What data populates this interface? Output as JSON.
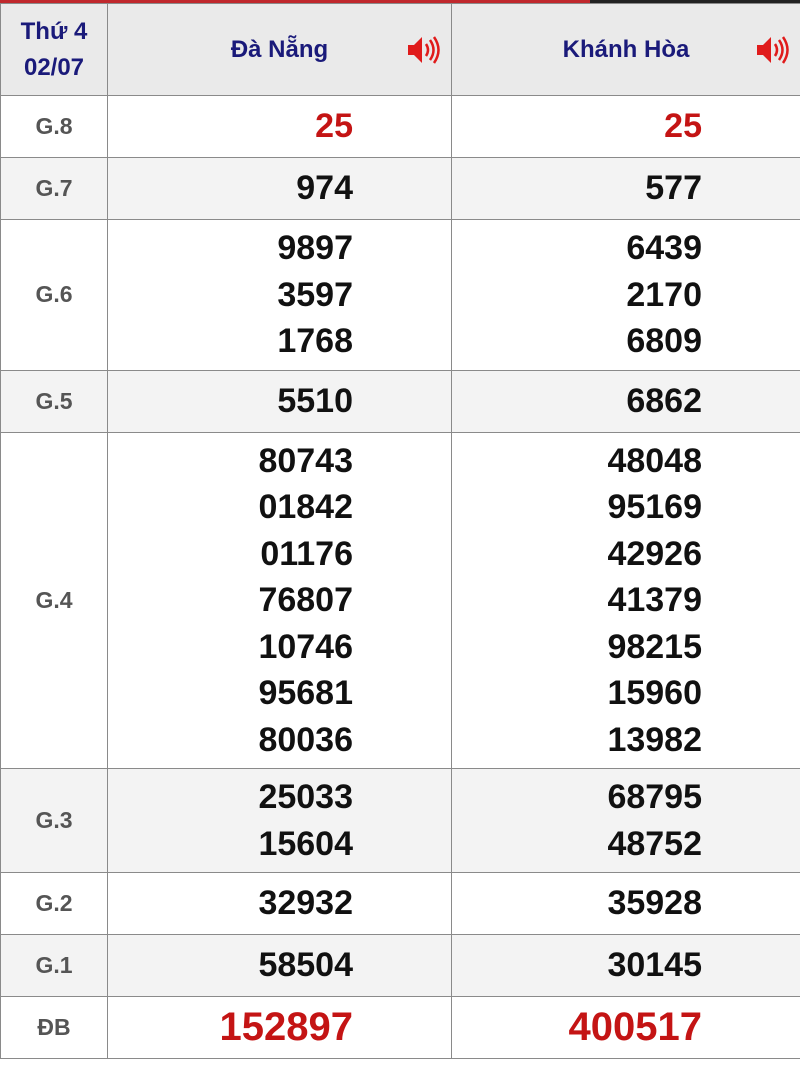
{
  "header": {
    "day": "Thứ 4",
    "date": "02/07",
    "provinces": [
      {
        "name": "Đà Nẵng",
        "icon": "speaker-icon"
      },
      {
        "name": "Khánh Hòa",
        "icon": "speaker-icon"
      }
    ]
  },
  "colors": {
    "accent_red": "#c41414",
    "header_blue": "#1a1a7a"
  },
  "prizes": [
    {
      "label": "G.8",
      "values": [
        [
          "25"
        ],
        [
          "25"
        ]
      ]
    },
    {
      "label": "G.7",
      "values": [
        [
          "974"
        ],
        [
          "577"
        ]
      ]
    },
    {
      "label": "G.6",
      "values": [
        [
          "9897",
          "3597",
          "1768"
        ],
        [
          "6439",
          "2170",
          "6809"
        ]
      ]
    },
    {
      "label": "G.5",
      "values": [
        [
          "5510"
        ],
        [
          "6862"
        ]
      ]
    },
    {
      "label": "G.4",
      "values": [
        [
          "80743",
          "01842",
          "01176",
          "76807",
          "10746",
          "95681",
          "80036"
        ],
        [
          "48048",
          "95169",
          "42926",
          "41379",
          "98215",
          "15960",
          "13982"
        ]
      ]
    },
    {
      "label": "G.3",
      "values": [
        [
          "25033",
          "15604"
        ],
        [
          "68795",
          "48752"
        ]
      ]
    },
    {
      "label": "G.2",
      "values": [
        [
          "32932"
        ],
        [
          "35928"
        ]
      ]
    },
    {
      "label": "G.1",
      "values": [
        [
          "58504"
        ],
        [
          "30145"
        ]
      ]
    },
    {
      "label": "ĐB",
      "values": [
        [
          "152897"
        ],
        [
          "400517"
        ]
      ]
    }
  ]
}
